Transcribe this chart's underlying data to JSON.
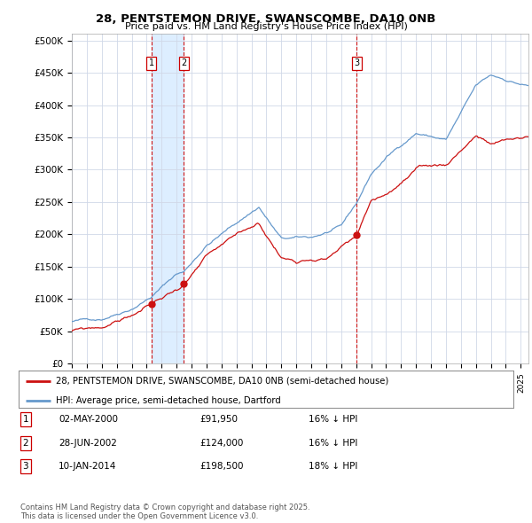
{
  "title": "28, PENTSTEMON DRIVE, SWANSCOMBE, DA10 0NB",
  "subtitle": "Price paid vs. HM Land Registry's House Price Index (HPI)",
  "plot_bg_color": "#ffffff",
  "grid_color": "#d0d8e8",
  "shade_color": "#ddeeff",
  "ylabel_ticks": [
    "£0",
    "£50K",
    "£100K",
    "£150K",
    "£200K",
    "£250K",
    "£300K",
    "£350K",
    "£400K",
    "£450K",
    "£500K"
  ],
  "ytick_values": [
    0,
    50000,
    100000,
    150000,
    200000,
    250000,
    300000,
    350000,
    400000,
    450000,
    500000
  ],
  "xlim_start": 1995.0,
  "xlim_end": 2025.5,
  "ylim_min": 0,
  "ylim_max": 510000,
  "sale_dates_num": [
    2000.33,
    2002.49,
    2014.03
  ],
  "sale_prices": [
    91950,
    124000,
    198500
  ],
  "sale_labels": [
    "1",
    "2",
    "3"
  ],
  "legend_label_red": "28, PENTSTEMON DRIVE, SWANSCOMBE, DA10 0NB (semi-detached house)",
  "legend_label_blue": "HPI: Average price, semi-detached house, Dartford",
  "table_rows": [
    {
      "num": "1",
      "date": "02-MAY-2000",
      "price": "£91,950",
      "pct": "16% ↓ HPI"
    },
    {
      "num": "2",
      "date": "28-JUN-2002",
      "price": "£124,000",
      "pct": "16% ↓ HPI"
    },
    {
      "num": "3",
      "date": "10-JAN-2014",
      "price": "£198,500",
      "pct": "18% ↓ HPI"
    }
  ],
  "footer": "Contains HM Land Registry data © Crown copyright and database right 2025.\nThis data is licensed under the Open Government Licence v3.0.",
  "hpi_color": "#6699cc",
  "price_color": "#cc1111",
  "dashed_line_color": "#cc0000",
  "label_box_color": "#cc0000"
}
